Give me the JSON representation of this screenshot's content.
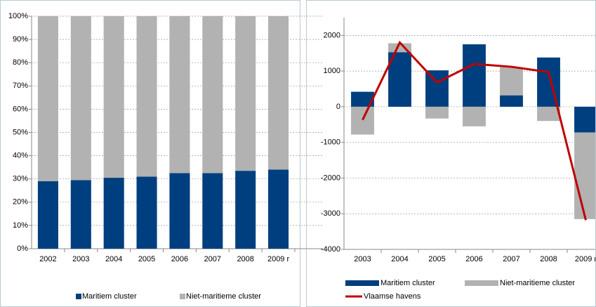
{
  "chart_data": [
    {
      "type": "bar",
      "stacked": true,
      "legend": "bottom",
      "grid": true,
      "categories": [
        "2002",
        "2003",
        "2004",
        "2005",
        "2006",
        "2007",
        "2008",
        "2009 r"
      ],
      "series": [
        {
          "name": "Maritiem cluster",
          "color": "#003f7f",
          "values": [
            29,
            29.5,
            30.5,
            31,
            32.5,
            32.5,
            33.5,
            34
          ]
        },
        {
          "name": "Niet-maritieme cluster",
          "color": "#b2b2b2",
          "values": [
            71,
            70.5,
            69.5,
            69,
            67.5,
            67.5,
            66.5,
            66
          ]
        }
      ],
      "ylim": [
        0,
        100
      ],
      "yticks": [
        {
          "value": 0,
          "label": "0%"
        },
        {
          "value": 10,
          "label": "10%"
        },
        {
          "value": 20,
          "label": "20%"
        },
        {
          "value": 30,
          "label": "30%"
        },
        {
          "value": 40,
          "label": "40%"
        },
        {
          "value": 50,
          "label": "50%"
        },
        {
          "value": 60,
          "label": "60%"
        },
        {
          "value": 70,
          "label": "70%"
        },
        {
          "value": 80,
          "label": "80%"
        },
        {
          "value": 90,
          "label": "90%"
        },
        {
          "value": 100,
          "label": "100%"
        }
      ]
    },
    {
      "type": "bar",
      "stacked": true,
      "legend": "bottom",
      "grid": true,
      "categories": [
        "2003",
        "2004",
        "2005",
        "2006",
        "2007",
        "2008",
        "2009 r"
      ],
      "series": [
        {
          "name": "Maritiem cluster",
          "color": "#003f7f",
          "values": [
            420,
            1530,
            1020,
            1750,
            320,
            1380,
            -720
          ]
        },
        {
          "name": "Niet-maritieme cluster",
          "color": "#b2b2b2",
          "values": [
            -780,
            250,
            -330,
            -550,
            790,
            -400,
            -2430
          ]
        },
        {
          "name": "Vlaamse havens",
          "type": "line",
          "color": "#c00000",
          "values": [
            -370,
            1800,
            680,
            1200,
            1120,
            970,
            -3180
          ]
        }
      ],
      "ylim": [
        -4000,
        2500
      ],
      "yticks": [
        -4000,
        -3000,
        -2000,
        -1000,
        0,
        1000,
        2000
      ]
    }
  ]
}
